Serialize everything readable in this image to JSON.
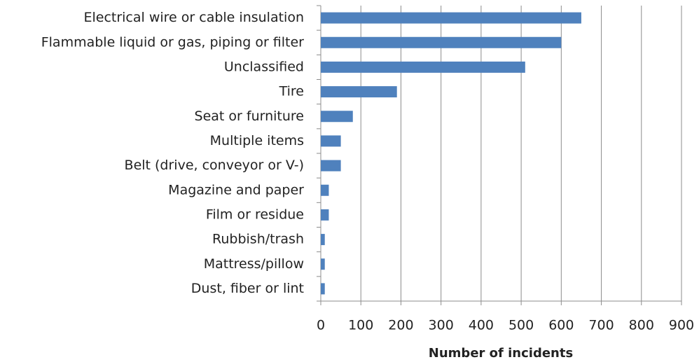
{
  "chart_data": {
    "type": "bar",
    "orientation": "horizontal",
    "x_label": "Number of incidents",
    "categories": [
      "Electrical wire or cable insulation",
      "Flammable liquid or gas, piping or filter",
      "Unclassified",
      "Tire",
      "Seat or furniture",
      "Multiple items",
      "Belt (drive, conveyor or V-)",
      "Magazine and paper",
      "Film or residue",
      "Rubbish/trash",
      "Mattress/pillow",
      "Dust, fiber or lint"
    ],
    "values": [
      650,
      600,
      510,
      190,
      80,
      50,
      50,
      20,
      20,
      10,
      10,
      10
    ],
    "color": "#4f81bd",
    "xlim": [
      0,
      900
    ],
    "xticks": [
      0,
      100,
      200,
      300,
      400,
      500,
      600,
      700,
      800,
      900
    ],
    "grid": true
  }
}
